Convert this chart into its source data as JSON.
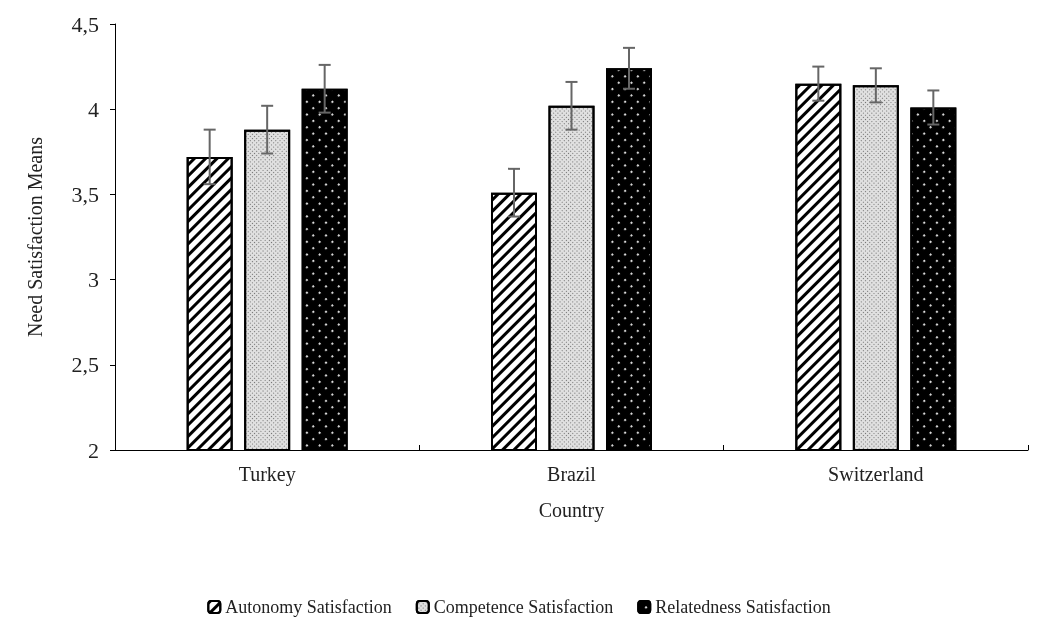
{
  "chart_data": {
    "type": "bar",
    "xlabel": "Country",
    "ylabel": "Need Satisfaction Means",
    "categories": [
      "Turkey",
      "Brazil",
      "Switzerland"
    ],
    "series": [
      {
        "name": "Autonomy Satisfaction",
        "color": "#ffffff",
        "values": [
          3.72,
          3.51,
          4.15
        ],
        "errors": [
          0.16,
          0.14,
          0.1
        ]
      },
      {
        "name": "Competence Satisfaction",
        "color": "#e0e0e0",
        "values": [
          3.88,
          4.02,
          4.14
        ],
        "errors": [
          0.14,
          0.14,
          0.1
        ]
      },
      {
        "name": "Relatedness Satisfaction",
        "color": "#000000",
        "values": [
          4.12,
          4.24,
          4.01
        ],
        "errors": [
          0.14,
          0.12,
          0.1
        ]
      }
    ],
    "ylim": [
      2,
      4.5
    ],
    "yticks": [
      {
        "value": 2,
        "label": "2"
      },
      {
        "value": 2.5,
        "label": "2,5"
      },
      {
        "value": 3,
        "label": "3"
      },
      {
        "value": 3.5,
        "label": "3,5"
      },
      {
        "value": 4,
        "label": "4"
      },
      {
        "value": 4.5,
        "label": "4,5"
      }
    ],
    "grid": false,
    "legend": "bottom"
  }
}
